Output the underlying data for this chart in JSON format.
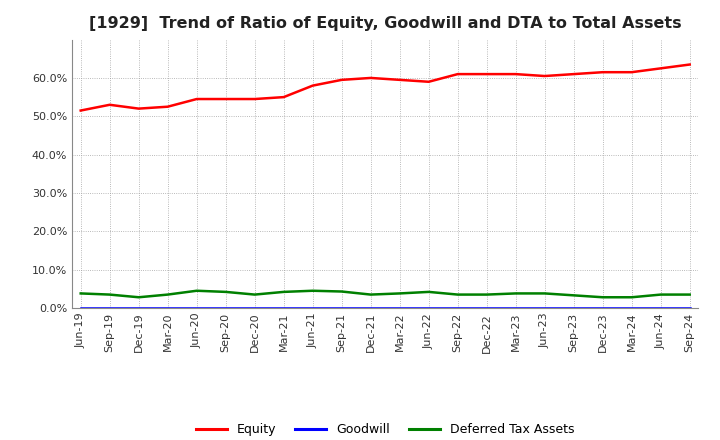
{
  "title": "[1929]  Trend of Ratio of Equity, Goodwill and DTA to Total Assets",
  "x_labels": [
    "Jun-19",
    "Sep-19",
    "Dec-19",
    "Mar-20",
    "Jun-20",
    "Sep-20",
    "Dec-20",
    "Mar-21",
    "Jun-21",
    "Sep-21",
    "Dec-21",
    "Mar-22",
    "Jun-22",
    "Sep-22",
    "Dec-22",
    "Mar-23",
    "Jun-23",
    "Sep-23",
    "Dec-23",
    "Mar-24",
    "Jun-24",
    "Sep-24"
  ],
  "equity": [
    51.5,
    53.0,
    52.0,
    52.5,
    54.5,
    54.5,
    54.5,
    55.0,
    58.0,
    59.5,
    60.0,
    59.5,
    59.0,
    61.0,
    61.0,
    61.0,
    60.5,
    61.0,
    61.5,
    61.5,
    62.5,
    63.5
  ],
  "goodwill": [
    0.0,
    0.0,
    0.0,
    0.0,
    0.0,
    0.0,
    0.0,
    0.0,
    0.0,
    0.0,
    0.0,
    0.0,
    0.0,
    0.0,
    0.0,
    0.0,
    0.0,
    0.0,
    0.0,
    0.0,
    0.0,
    0.0
  ],
  "dta": [
    3.8,
    3.5,
    2.8,
    3.5,
    4.5,
    4.2,
    3.5,
    4.2,
    4.5,
    4.3,
    3.5,
    3.8,
    4.2,
    3.5,
    3.5,
    3.8,
    3.8,
    3.3,
    2.8,
    2.8,
    3.5,
    3.5
  ],
  "equity_color": "#ff0000",
  "goodwill_color": "#0000ff",
  "dta_color": "#008000",
  "ylim": [
    0,
    70
  ],
  "yticks": [
    0.0,
    10.0,
    20.0,
    30.0,
    40.0,
    50.0,
    60.0
  ],
  "background_color": "#ffffff",
  "plot_bg_color": "#ffffff",
  "grid_color": "#999999",
  "title_fontsize": 11.5,
  "tick_fontsize": 8,
  "legend_labels": [
    "Equity",
    "Goodwill",
    "Deferred Tax Assets"
  ]
}
